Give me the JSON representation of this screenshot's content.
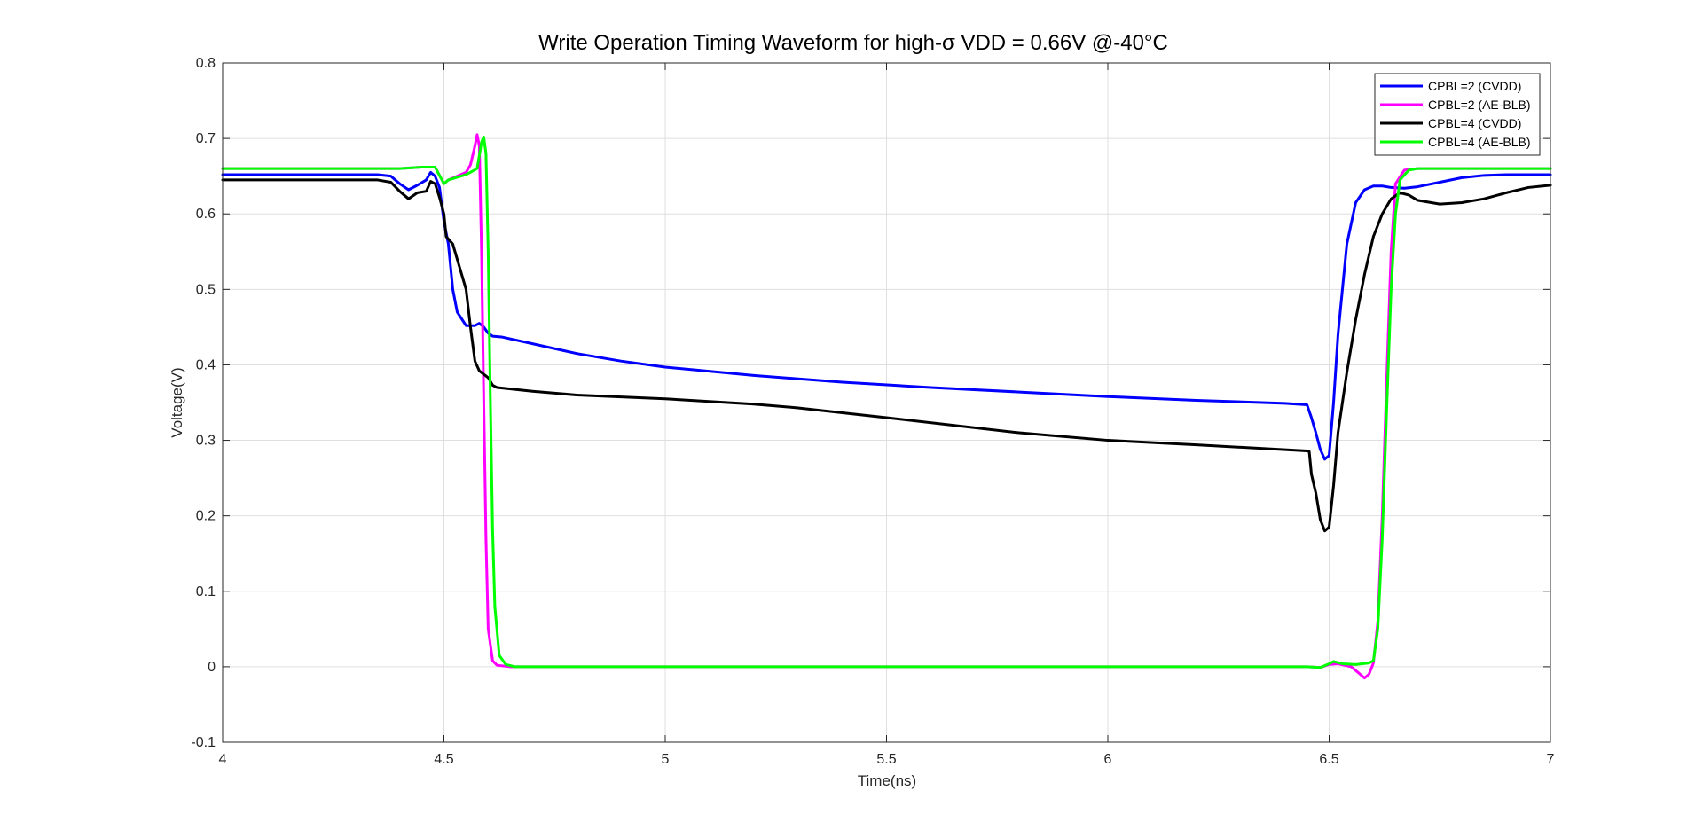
{
  "chart_data": {
    "type": "line",
    "title": "Write Operation Timing Waveform for high-σ VDD = 0.66V @-40°C",
    "xlabel": "Time(ns)",
    "ylabel": "Voltage(V)",
    "xlim": [
      4,
      7
    ],
    "ylim": [
      -0.1,
      0.8
    ],
    "xticks": [
      4,
      4.5,
      5,
      5.5,
      6,
      6.5,
      7
    ],
    "xtick_labels": [
      "4",
      "4.5",
      "5",
      "5.5",
      "6",
      "6.5",
      "7"
    ],
    "yticks": [
      -0.1,
      0,
      0.1,
      0.2,
      0.3,
      0.4,
      0.5,
      0.6,
      0.7,
      0.8
    ],
    "ytick_labels": [
      "-0.1",
      "0",
      "0.1",
      "0.2",
      "0.3",
      "0.4",
      "0.5",
      "0.6",
      "0.7",
      "0.8"
    ],
    "grid": true,
    "legend_position": "top-right",
    "series": [
      {
        "name": "CPBL=2 (CVDD)",
        "color": "#0000ff",
        "points": [
          [
            4.0,
            0.652
          ],
          [
            4.35,
            0.652
          ],
          [
            4.38,
            0.65
          ],
          [
            4.4,
            0.64
          ],
          [
            4.42,
            0.632
          ],
          [
            4.44,
            0.638
          ],
          [
            4.46,
            0.645
          ],
          [
            4.47,
            0.655
          ],
          [
            4.48,
            0.65
          ],
          [
            4.49,
            0.635
          ],
          [
            4.5,
            0.59
          ],
          [
            4.51,
            0.56
          ],
          [
            4.52,
            0.5
          ],
          [
            4.53,
            0.47
          ],
          [
            4.55,
            0.452
          ],
          [
            4.57,
            0.452
          ],
          [
            4.58,
            0.455
          ],
          [
            4.59,
            0.45
          ],
          [
            4.6,
            0.442
          ],
          [
            4.61,
            0.438
          ],
          [
            4.63,
            0.437
          ],
          [
            4.7,
            0.428
          ],
          [
            4.8,
            0.415
          ],
          [
            4.9,
            0.405
          ],
          [
            5.0,
            0.397
          ],
          [
            5.2,
            0.386
          ],
          [
            5.4,
            0.377
          ],
          [
            5.6,
            0.37
          ],
          [
            5.8,
            0.364
          ],
          [
            6.0,
            0.358
          ],
          [
            6.2,
            0.353
          ],
          [
            6.4,
            0.349
          ],
          [
            6.45,
            0.347
          ],
          [
            6.46,
            0.33
          ],
          [
            6.47,
            0.31
          ],
          [
            6.48,
            0.288
          ],
          [
            6.49,
            0.275
          ],
          [
            6.5,
            0.28
          ],
          [
            6.51,
            0.35
          ],
          [
            6.52,
            0.44
          ],
          [
            6.54,
            0.56
          ],
          [
            6.56,
            0.615
          ],
          [
            6.58,
            0.632
          ],
          [
            6.6,
            0.637
          ],
          [
            6.62,
            0.637
          ],
          [
            6.64,
            0.635
          ],
          [
            6.67,
            0.634
          ],
          [
            6.7,
            0.636
          ],
          [
            6.75,
            0.642
          ],
          [
            6.8,
            0.648
          ],
          [
            6.85,
            0.651
          ],
          [
            6.9,
            0.652
          ],
          [
            7.0,
            0.652
          ]
        ]
      },
      {
        "name": "CPBL=2 (AE-BLB)",
        "color": "#ff00ff",
        "points": [
          [
            4.0,
            0.66
          ],
          [
            4.4,
            0.66
          ],
          [
            4.45,
            0.662
          ],
          [
            4.48,
            0.662
          ],
          [
            4.5,
            0.64
          ],
          [
            4.51,
            0.645
          ],
          [
            4.53,
            0.65
          ],
          [
            4.55,
            0.655
          ],
          [
            4.56,
            0.665
          ],
          [
            4.57,
            0.69
          ],
          [
            4.575,
            0.705
          ],
          [
            4.58,
            0.69
          ],
          [
            4.585,
            0.55
          ],
          [
            4.59,
            0.35
          ],
          [
            4.595,
            0.17
          ],
          [
            4.6,
            0.05
          ],
          [
            4.61,
            0.008
          ],
          [
            4.62,
            0.002
          ],
          [
            4.65,
            0.0
          ],
          [
            6.45,
            0.0
          ],
          [
            6.48,
            -0.001
          ],
          [
            6.5,
            0.003
          ],
          [
            6.52,
            0.004
          ],
          [
            6.55,
            0.0
          ],
          [
            6.57,
            -0.01
          ],
          [
            6.58,
            -0.015
          ],
          [
            6.59,
            -0.01
          ],
          [
            6.6,
            0.005
          ],
          [
            6.61,
            0.06
          ],
          [
            6.62,
            0.2
          ],
          [
            6.63,
            0.38
          ],
          [
            6.64,
            0.55
          ],
          [
            6.65,
            0.64
          ],
          [
            6.67,
            0.658
          ],
          [
            6.7,
            0.66
          ],
          [
            7.0,
            0.66
          ]
        ]
      },
      {
        "name": "CPBL=4 (CVDD)",
        "color": "#000000",
        "points": [
          [
            4.0,
            0.645
          ],
          [
            4.35,
            0.645
          ],
          [
            4.38,
            0.642
          ],
          [
            4.4,
            0.63
          ],
          [
            4.42,
            0.62
          ],
          [
            4.44,
            0.628
          ],
          [
            4.46,
            0.63
          ],
          [
            4.47,
            0.643
          ],
          [
            4.48,
            0.64
          ],
          [
            4.49,
            0.622
          ],
          [
            4.5,
            0.6
          ],
          [
            4.505,
            0.57
          ],
          [
            4.52,
            0.56
          ],
          [
            4.53,
            0.54
          ],
          [
            4.55,
            0.5
          ],
          [
            4.56,
            0.45
          ],
          [
            4.57,
            0.405
          ],
          [
            4.58,
            0.392
          ],
          [
            4.6,
            0.383
          ],
          [
            4.61,
            0.373
          ],
          [
            4.62,
            0.37
          ],
          [
            4.7,
            0.365
          ],
          [
            4.8,
            0.36
          ],
          [
            5.0,
            0.355
          ],
          [
            5.2,
            0.348
          ],
          [
            5.3,
            0.343
          ],
          [
            5.5,
            0.33
          ],
          [
            5.8,
            0.31
          ],
          [
            6.0,
            0.3
          ],
          [
            6.2,
            0.294
          ],
          [
            6.45,
            0.286
          ],
          [
            6.455,
            0.285
          ],
          [
            6.46,
            0.255
          ],
          [
            6.47,
            0.23
          ],
          [
            6.48,
            0.195
          ],
          [
            6.49,
            0.18
          ],
          [
            6.5,
            0.185
          ],
          [
            6.51,
            0.24
          ],
          [
            6.52,
            0.31
          ],
          [
            6.54,
            0.39
          ],
          [
            6.56,
            0.46
          ],
          [
            6.58,
            0.52
          ],
          [
            6.6,
            0.57
          ],
          [
            6.62,
            0.6
          ],
          [
            6.64,
            0.62
          ],
          [
            6.66,
            0.628
          ],
          [
            6.68,
            0.625
          ],
          [
            6.7,
            0.618
          ],
          [
            6.75,
            0.613
          ],
          [
            6.8,
            0.615
          ],
          [
            6.85,
            0.62
          ],
          [
            6.9,
            0.628
          ],
          [
            6.95,
            0.635
          ],
          [
            7.0,
            0.638
          ]
        ]
      },
      {
        "name": "CPBL=4 (AE-BLB)",
        "color": "#00ff00",
        "points": [
          [
            4.0,
            0.66
          ],
          [
            4.4,
            0.66
          ],
          [
            4.45,
            0.662
          ],
          [
            4.48,
            0.662
          ],
          [
            4.5,
            0.64
          ],
          [
            4.51,
            0.645
          ],
          [
            4.55,
            0.652
          ],
          [
            4.575,
            0.66
          ],
          [
            4.585,
            0.695
          ],
          [
            4.59,
            0.702
          ],
          [
            4.595,
            0.68
          ],
          [
            4.6,
            0.55
          ],
          [
            4.605,
            0.35
          ],
          [
            4.61,
            0.18
          ],
          [
            4.615,
            0.08
          ],
          [
            4.625,
            0.015
          ],
          [
            4.64,
            0.003
          ],
          [
            4.66,
            0.0
          ],
          [
            6.45,
            0.0
          ],
          [
            6.48,
            -0.001
          ],
          [
            6.5,
            0.004
          ],
          [
            6.51,
            0.007
          ],
          [
            6.53,
            0.004
          ],
          [
            6.56,
            0.003
          ],
          [
            6.59,
            0.005
          ],
          [
            6.6,
            0.008
          ],
          [
            6.61,
            0.05
          ],
          [
            6.62,
            0.17
          ],
          [
            6.63,
            0.34
          ],
          [
            6.64,
            0.5
          ],
          [
            6.65,
            0.6
          ],
          [
            6.66,
            0.645
          ],
          [
            6.68,
            0.658
          ],
          [
            6.7,
            0.66
          ],
          [
            7.0,
            0.66
          ]
        ]
      }
    ]
  }
}
